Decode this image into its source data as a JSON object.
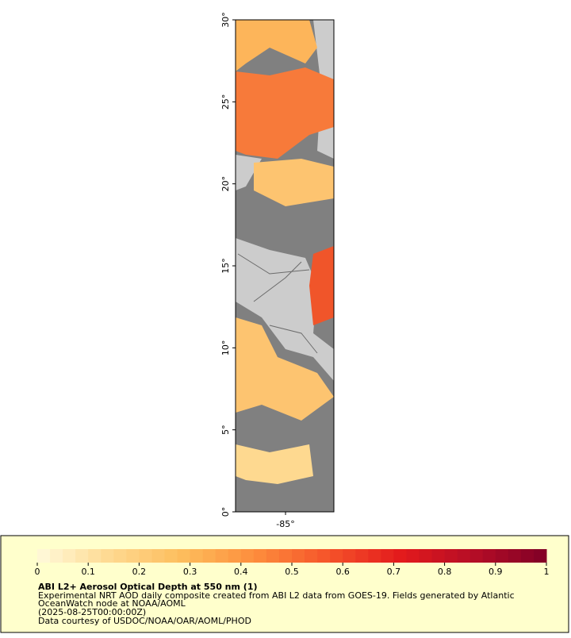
{
  "map": {
    "ylim": [
      0,
      30
    ],
    "yticks": [
      {
        "value": 0,
        "label": "0°"
      },
      {
        "value": 5,
        "label": "5°"
      },
      {
        "value": 10,
        "label": "10°"
      },
      {
        "value": 15,
        "label": "15°"
      },
      {
        "value": 20,
        "label": "20°"
      },
      {
        "value": 25,
        "label": "25°"
      },
      {
        "value": 30,
        "label": "30°"
      }
    ],
    "xlim": [
      -88.05,
      -82.05
    ],
    "xticks": [
      {
        "value": -85,
        "label": "-85°"
      }
    ]
  },
  "colorbar": {
    "range": [
      0,
      1
    ],
    "ticks": [
      0,
      0.1,
      0.2,
      0.3,
      0.4,
      0.5,
      0.6,
      0.7,
      0.8,
      0.9,
      1
    ],
    "colors": [
      "#fffadc",
      "#fed990",
      "#fdbd5c",
      "#fd8d3c",
      "#f5532a",
      "#e31a1c",
      "#b50d26",
      "#800026"
    ]
  },
  "legend": {
    "title": "ABI L2+ Aerosol Optical Depth at 550 nm (1)",
    "lines": [
      "Experimental NRT AOD daily composite created from ABI L2 data from GOES-19. Fields generated by Atlantic",
      "OceanWatch node at NOAA/AOML",
      "(2025-08-25T00:00:00Z)",
      "Data courtesy of USDOC/NOAA/OAR/AOML/PHOD"
    ]
  }
}
